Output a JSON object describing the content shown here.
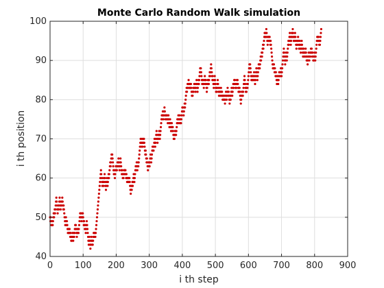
{
  "chart_data": {
    "type": "scatter",
    "title": "Monte Carlo Random Walk simulation",
    "xlabel": "i th step",
    "ylabel": "i th position",
    "xlim": [
      0,
      900
    ],
    "ylim": [
      40,
      100
    ],
    "xticks": [
      0,
      100,
      200,
      300,
      400,
      500,
      600,
      700,
      800,
      900
    ],
    "yticks": [
      40,
      50,
      60,
      70,
      80,
      90,
      100
    ],
    "grid": true,
    "marker_color": "#cc0000",
    "anchor_points": [
      [
        0,
        50
      ],
      [
        10,
        51
      ],
      [
        20,
        54
      ],
      [
        30,
        54
      ],
      [
        40,
        52
      ],
      [
        50,
        49
      ],
      [
        55,
        46
      ],
      [
        60,
        45
      ],
      [
        70,
        43
      ],
      [
        80,
        46
      ],
      [
        90,
        50
      ],
      [
        100,
        51
      ],
      [
        110,
        48
      ],
      [
        115,
        45
      ],
      [
        125,
        45
      ],
      [
        135,
        46
      ],
      [
        140,
        48
      ],
      [
        145,
        55
      ],
      [
        150,
        58
      ],
      [
        160,
        60
      ],
      [
        170,
        58
      ],
      [
        180,
        62
      ],
      [
        190,
        63
      ],
      [
        200,
        62
      ],
      [
        210,
        62
      ],
      [
        220,
        59
      ],
      [
        230,
        60
      ],
      [
        240,
        60
      ],
      [
        250,
        58
      ],
      [
        260,
        62
      ],
      [
        270,
        66
      ],
      [
        280,
        68
      ],
      [
        290,
        66
      ],
      [
        300,
        65
      ],
      [
        310,
        68
      ],
      [
        320,
        70
      ],
      [
        330,
        73
      ],
      [
        340,
        75
      ],
      [
        350,
        76
      ],
      [
        360,
        75
      ],
      [
        370,
        73
      ],
      [
        380,
        72
      ],
      [
        390,
        74
      ],
      [
        400,
        78
      ],
      [
        410,
        81
      ],
      [
        420,
        84
      ],
      [
        430,
        83
      ],
      [
        440,
        83
      ],
      [
        450,
        83
      ],
      [
        460,
        84
      ],
      [
        470,
        84
      ],
      [
        480,
        84
      ],
      [
        490,
        85
      ],
      [
        500,
        84
      ],
      [
        510,
        82
      ],
      [
        520,
        82
      ],
      [
        530,
        80
      ],
      [
        540,
        82
      ],
      [
        550,
        82
      ],
      [
        560,
        83
      ],
      [
        570,
        82
      ],
      [
        580,
        82
      ],
      [
        590,
        85
      ],
      [
        600,
        87
      ],
      [
        610,
        86
      ],
      [
        620,
        84
      ],
      [
        630,
        88
      ],
      [
        640,
        93
      ],
      [
        650,
        96
      ],
      [
        660,
        97
      ],
      [
        670,
        92
      ],
      [
        680,
        88
      ],
      [
        690,
        84
      ],
      [
        700,
        85
      ],
      [
        710,
        90
      ],
      [
        720,
        94
      ],
      [
        730,
        96
      ],
      [
        740,
        97
      ],
      [
        750,
        96
      ],
      [
        760,
        94
      ],
      [
        770,
        93
      ],
      [
        780,
        91
      ],
      [
        790,
        91
      ],
      [
        800,
        92
      ],
      [
        810,
        95
      ],
      [
        820,
        99
      ]
    ]
  }
}
